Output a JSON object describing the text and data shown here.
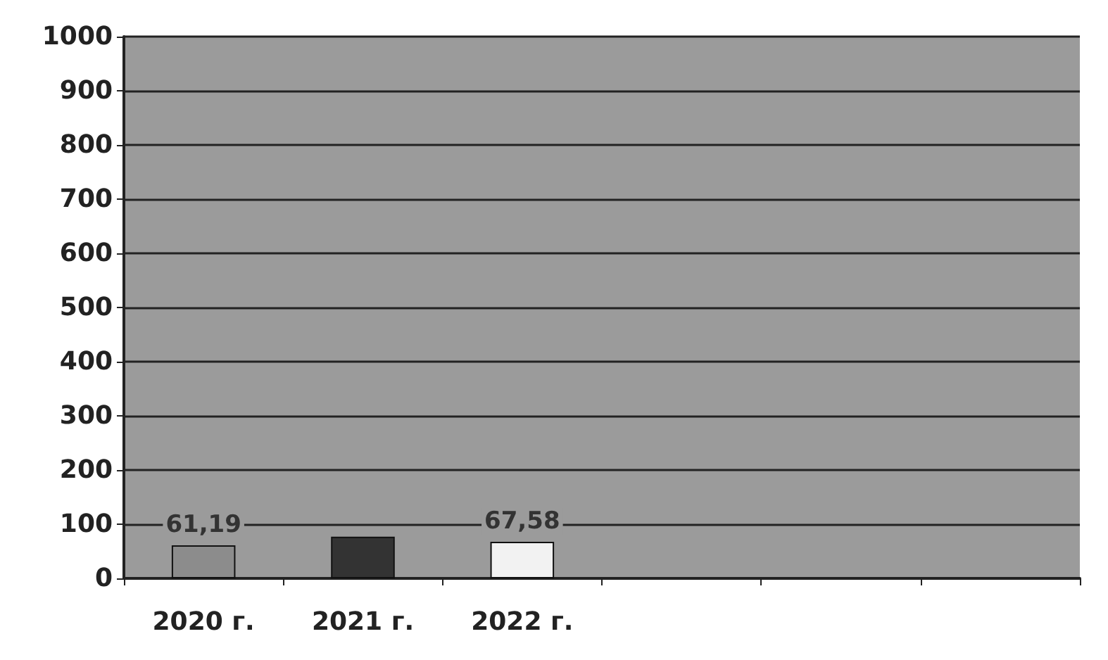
{
  "chart_data": {
    "type": "bar",
    "categories": [
      "2020 г.",
      "2021 г.",
      "2022 г.",
      null,
      null,
      null
    ],
    "values": [
      61.19,
      77,
      67.58,
      null,
      null,
      null
    ],
    "colors": [
      "#8c8c8c",
      "#333333",
      "#f2f2f2",
      "#8c8c8c",
      "#8c8c8c",
      "#8c8c8c"
    ],
    "value_labels": [
      "61,19",
      null,
      "67,58",
      null,
      null,
      null
    ],
    "ylim": [
      0,
      1000
    ],
    "yticks": [
      0,
      100,
      200,
      300,
      400,
      500,
      600,
      700,
      800,
      900,
      1000
    ],
    "grid": "y"
  }
}
